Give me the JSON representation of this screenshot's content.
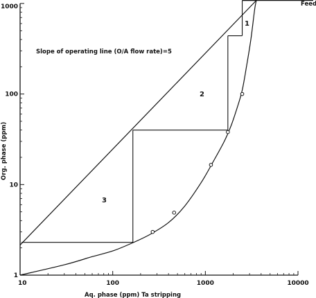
{
  "chart_data": {
    "type": "line",
    "title": "",
    "xlabel": "Aq. phase (ppm) Ta stripping",
    "ylabel": "Org. phase (ppm)",
    "x_scale": "log",
    "y_scale": "log",
    "xlim": [
      10,
      10000
    ],
    "ylim": [
      1,
      1000
    ],
    "x_ticks": [
      {
        "value": 10,
        "label": "10"
      },
      {
        "value": 100,
        "label": "100"
      },
      {
        "value": 1000,
        "label": "1000"
      },
      {
        "value": 10000,
        "label": "10000"
      }
    ],
    "y_ticks": [
      {
        "value": 1,
        "label": "1"
      },
      {
        "value": 10,
        "label": "10"
      },
      {
        "value": 100,
        "label": "100"
      },
      {
        "value": 1000,
        "label": "1000"
      }
    ],
    "grid": false,
    "annotation": "Slope of operating line (O/A flow rate)=5",
    "feed_label": "Feed",
    "feed_level": 1080,
    "operating_line": {
      "x": [
        10,
        3550
      ],
      "y": [
        2.15,
        1080
      ]
    },
    "equilibrium_curve": {
      "x": [
        10,
        30,
        60,
        100,
        160,
        250,
        400,
        600,
        900,
        1200,
        1600,
        1900,
        2200,
        2500,
        2800,
        3100,
        3400,
        3550
      ],
      "y": [
        1.0,
        1.3,
        1.6,
        1.85,
        2.25,
        2.8,
        3.8,
        5.8,
        10.5,
        17.5,
        30,
        45,
        70,
        110,
        210,
        400,
        850,
        1080
      ]
    },
    "data_points": {
      "x": [
        270,
        460,
        1150,
        1750,
        2500
      ],
      "y": [
        3.0,
        4.9,
        16.5,
        38,
        100
      ]
    },
    "stage_steps": [
      {
        "label": "1",
        "x_from": 3550,
        "x_to": 2500,
        "y": 1080,
        "y_next": 440
      },
      {
        "label": "2",
        "x_from": 2500,
        "x_to": 1750,
        "y": 440,
        "y_next": 40
      },
      {
        "label": "3",
        "x_from": 1750,
        "x_to": 165,
        "y": 40,
        "y_next": 2.3
      }
    ]
  }
}
